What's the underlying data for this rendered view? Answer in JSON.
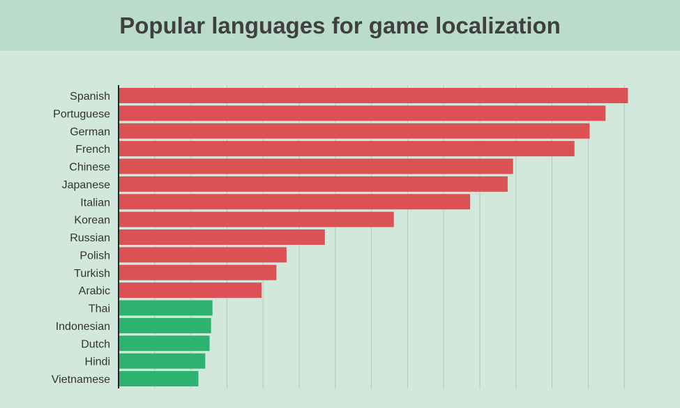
{
  "chart_data": {
    "type": "bar",
    "orientation": "horizontal",
    "title": "Popular languages for game localization",
    "xlabel": "",
    "ylabel": "",
    "xlim": [
      0,
      14.3
    ],
    "x_tick_labels_shown": false,
    "grid": "vertical",
    "categories": [
      "Spanish",
      "Portuguese",
      "German",
      "French",
      "Chinese",
      "Japanese",
      "Italian",
      "Korean",
      "Russian",
      "Polish",
      "Turkish",
      "Arabic",
      "Thai",
      "Indonesian",
      "Dutch",
      "Hindi",
      "Vietnamese"
    ],
    "values": [
      14.1,
      13.48,
      13.04,
      12.62,
      10.92,
      10.77,
      9.73,
      7.62,
      5.71,
      4.65,
      4.37,
      3.96,
      2.6,
      2.56,
      2.52,
      2.4,
      2.21
    ],
    "bar_colors": [
      "#dc5254",
      "#dc5254",
      "#dc5254",
      "#dc5254",
      "#dc5254",
      "#dc5254",
      "#dc5254",
      "#dc5254",
      "#dc5254",
      "#dc5254",
      "#dc5254",
      "#dc5254",
      "#2db36f",
      "#2db36f",
      "#2db36f",
      "#2db36f",
      "#2db36f"
    ]
  },
  "colors": {
    "background": "#d2e8dc",
    "header": "#bbdccb",
    "title": "#404040",
    "grid": "#b3c9bd",
    "axis": "#222222"
  }
}
